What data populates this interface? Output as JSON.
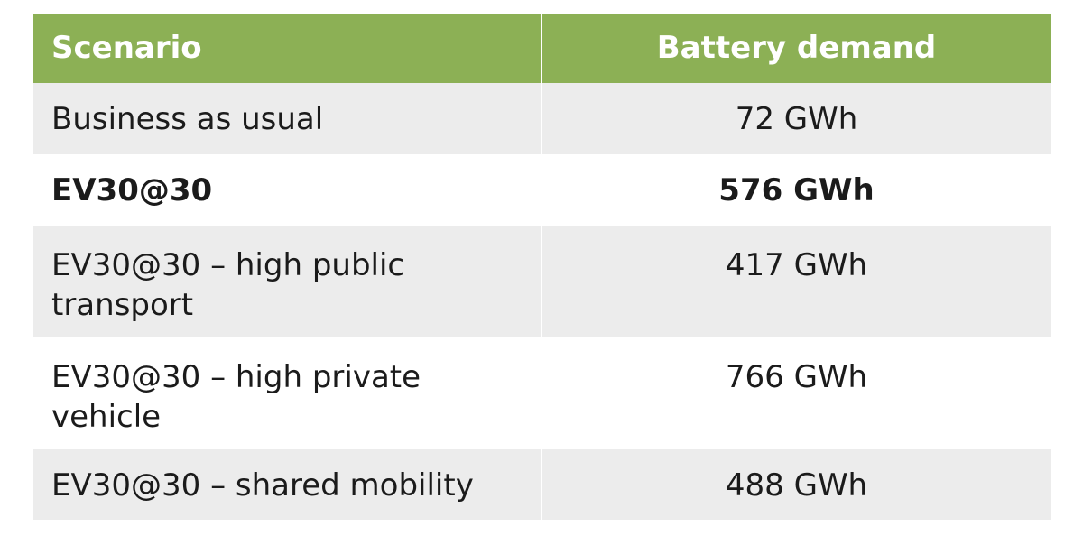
{
  "table": {
    "headers": {
      "scenario": "Scenario",
      "demand": "Battery demand"
    },
    "rows": [
      {
        "scenario": "Business as usual",
        "demand": "72 GWh",
        "bold": false
      },
      {
        "scenario": "EV30@30",
        "demand": "576 GWh",
        "bold": true
      },
      {
        "scenario": "EV30@30 – high public transport",
        "demand": "417 GWh",
        "bold": false
      },
      {
        "scenario": "EV30@30 – high private vehicle",
        "demand": "766 GWh",
        "bold": false
      },
      {
        "scenario": "EV30@30 – shared mobility",
        "demand": "488 GWh",
        "bold": false
      }
    ]
  },
  "colors": {
    "header_bg": "#8cb055",
    "header_text": "#ffffff",
    "row_shade": "#ececec",
    "row_plain": "#ffffff"
  }
}
